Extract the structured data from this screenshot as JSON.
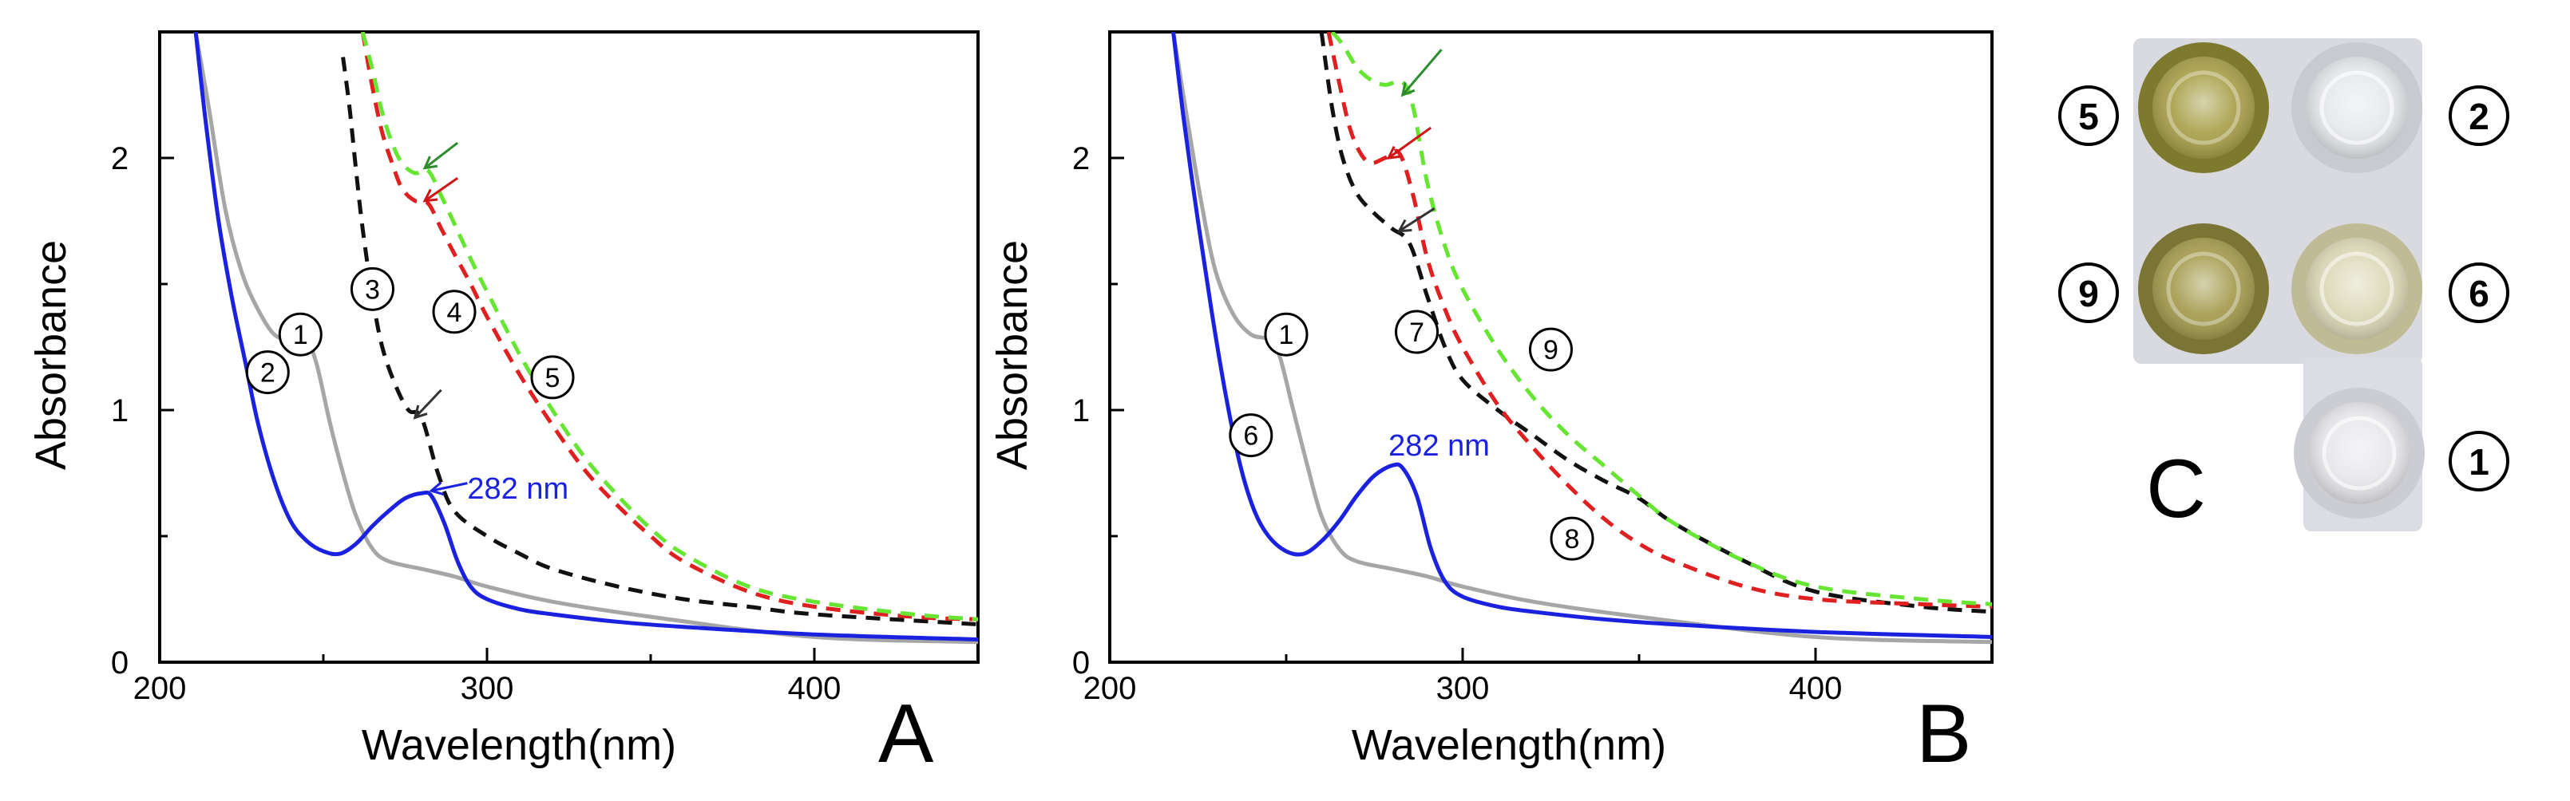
{
  "colors": {
    "curve_gray": "#a6a6a6",
    "curve_blue": "#1a22e0",
    "curve_black": "#111111",
    "curve_red": "#e02020",
    "curve_green": "#66e533",
    "arrow_green": "#2e8b2e",
    "arrow_red": "#d01515",
    "arrow_black": "#333333",
    "annot_blue": "#1a22e0"
  },
  "chart_data": [
    {
      "panel": "A",
      "type": "line",
      "xlabel": "Wavelength(nm)",
      "ylabel": "Absorbance",
      "xlim": [
        200,
        450
      ],
      "ylim": [
        0,
        2.5
      ],
      "xticks": [
        200,
        300,
        400
      ],
      "yticks": [
        0,
        1,
        2
      ],
      "series": [
        {
          "name": "1",
          "style": "solid",
          "color": "curve_gray",
          "x": [
            211,
            215,
            220,
            225,
            230,
            235,
            240,
            245,
            248,
            252,
            256,
            260,
            265,
            270,
            280,
            290,
            300,
            320,
            350,
            400,
            450
          ],
          "y": [
            2.5,
            2.2,
            1.8,
            1.55,
            1.4,
            1.3,
            1.28,
            1.27,
            1.18,
            0.95,
            0.75,
            0.58,
            0.45,
            0.4,
            0.37,
            0.34,
            0.3,
            0.24,
            0.18,
            0.1,
            0.08
          ]
        },
        {
          "name": "2",
          "style": "solid",
          "color": "curve_blue",
          "x": [
            211,
            214,
            218,
            222,
            226,
            230,
            235,
            240,
            245,
            250,
            255,
            260,
            265,
            270,
            275,
            280,
            283,
            287,
            291,
            295,
            300,
            310,
            320,
            340,
            360,
            400,
            450
          ],
          "y": [
            2.5,
            2.15,
            1.75,
            1.45,
            1.2,
            0.95,
            0.72,
            0.56,
            0.48,
            0.44,
            0.43,
            0.47,
            0.54,
            0.6,
            0.65,
            0.67,
            0.66,
            0.55,
            0.4,
            0.3,
            0.25,
            0.21,
            0.19,
            0.16,
            0.14,
            0.11,
            0.09
          ]
        },
        {
          "name": "3",
          "style": "dashed",
          "color": "curve_black",
          "x": [
            256,
            258,
            260,
            262,
            265,
            268,
            272,
            276,
            280,
            285,
            290,
            300,
            310,
            320,
            340,
            360,
            380,
            400,
            450
          ],
          "y": [
            2.4,
            2.2,
            1.95,
            1.72,
            1.45,
            1.25,
            1.1,
            1.0,
            0.97,
            0.75,
            0.6,
            0.5,
            0.43,
            0.37,
            0.3,
            0.25,
            0.22,
            0.19,
            0.15
          ]
        },
        {
          "name": "4",
          "style": "dashed",
          "color": "curve_red",
          "x": [
            262,
            265,
            268,
            271,
            274,
            278,
            282,
            286,
            290,
            295,
            300,
            310,
            320,
            330,
            340,
            350,
            360,
            380,
            400,
            430,
            450
          ],
          "y": [
            2.5,
            2.28,
            2.1,
            1.98,
            1.88,
            1.83,
            1.82,
            1.72,
            1.62,
            1.5,
            1.37,
            1.14,
            0.94,
            0.76,
            0.62,
            0.5,
            0.4,
            0.28,
            0.22,
            0.18,
            0.17
          ]
        },
        {
          "name": "5",
          "style": "dashed",
          "color": "curve_green",
          "x": [
            262,
            265,
            268,
            271,
            274,
            278,
            282,
            286,
            290,
            295,
            300,
            310,
            320,
            330,
            340,
            350,
            360,
            380,
            400,
            430,
            450
          ],
          "y": [
            2.5,
            2.35,
            2.18,
            2.06,
            1.98,
            1.94,
            1.95,
            1.85,
            1.74,
            1.6,
            1.47,
            1.22,
            1.0,
            0.81,
            0.66,
            0.53,
            0.43,
            0.3,
            0.24,
            0.19,
            0.17
          ]
        }
      ],
      "markers": [
        {
          "label": "1",
          "x": 243,
          "y": 1.3
        },
        {
          "label": "2",
          "x": 233,
          "y": 1.15
        },
        {
          "label": "3",
          "x": 265,
          "y": 1.48
        },
        {
          "label": "4",
          "x": 290,
          "y": 1.39
        },
        {
          "label": "5",
          "x": 320,
          "y": 1.13
        }
      ],
      "arrows": [
        {
          "color": "arrow_green",
          "from": [
            291,
            2.06
          ],
          "to": [
            281,
            1.96
          ]
        },
        {
          "color": "arrow_red",
          "from": [
            291,
            1.92
          ],
          "to": [
            281,
            1.83
          ]
        },
        {
          "color": "arrow_black",
          "from": [
            286,
            1.08
          ],
          "to": [
            278,
            0.97
          ]
        },
        {
          "color": "annot_blue",
          "from": [
            294,
            0.71
          ],
          "to": [
            283,
            0.68
          ]
        }
      ],
      "annotations": [
        {
          "text": "282 nm",
          "x": 294,
          "y": 0.69,
          "color": "annot_blue"
        }
      ],
      "panel_letter": "A"
    },
    {
      "panel": "B",
      "type": "line",
      "xlabel": "Wavelength(nm)",
      "ylabel": "Absorbance",
      "xlim": [
        200,
        450
      ],
      "ylim": [
        0,
        2.5
      ],
      "xticks": [
        200,
        300,
        400
      ],
      "yticks": [
        0,
        1,
        2
      ],
      "series": [
        {
          "name": "1",
          "style": "solid",
          "color": "curve_gray",
          "x": [
            218,
            222,
            226,
            230,
            235,
            240,
            245,
            248,
            252,
            256,
            260,
            265,
            270,
            280,
            290,
            300,
            320,
            350,
            400,
            450
          ],
          "y": [
            2.5,
            2.15,
            1.82,
            1.55,
            1.38,
            1.3,
            1.28,
            1.22,
            1.0,
            0.78,
            0.58,
            0.45,
            0.4,
            0.37,
            0.34,
            0.3,
            0.24,
            0.18,
            0.1,
            0.08
          ]
        },
        {
          "name": "6",
          "style": "solid",
          "color": "curve_blue",
          "x": [
            218,
            221,
            225,
            229,
            233,
            237,
            241,
            245,
            250,
            255,
            260,
            265,
            270,
            275,
            280,
            283,
            287,
            291,
            295,
            300,
            310,
            320,
            340,
            360,
            400,
            450
          ],
          "y": [
            2.5,
            2.15,
            1.75,
            1.38,
            1.05,
            0.78,
            0.6,
            0.5,
            0.44,
            0.43,
            0.48,
            0.56,
            0.66,
            0.74,
            0.78,
            0.77,
            0.66,
            0.45,
            0.32,
            0.26,
            0.22,
            0.2,
            0.17,
            0.15,
            0.12,
            0.1
          ]
        },
        {
          "name": "7",
          "style": "dashed",
          "color": "curve_black",
          "x": [
            260,
            263,
            266,
            270,
            275,
            280,
            285,
            290,
            295,
            300,
            310,
            320,
            330,
            340,
            350,
            360,
            380,
            400,
            430,
            450
          ],
          "y": [
            2.5,
            2.2,
            2.0,
            1.86,
            1.78,
            1.72,
            1.66,
            1.45,
            1.25,
            1.12,
            1.0,
            0.9,
            0.8,
            0.72,
            0.65,
            0.55,
            0.4,
            0.28,
            0.22,
            0.2
          ]
        },
        {
          "name": "8",
          "style": "dashed",
          "color": "curve_red",
          "x": [
            262,
            265,
            268,
            271,
            274,
            278,
            282,
            286,
            290,
            295,
            300,
            310,
            320,
            330,
            340,
            350,
            360,
            380,
            400,
            430,
            450
          ],
          "y": [
            2.5,
            2.3,
            2.12,
            2.02,
            1.98,
            2.0,
            2.02,
            1.85,
            1.6,
            1.4,
            1.25,
            1.02,
            0.85,
            0.7,
            0.57,
            0.47,
            0.4,
            0.3,
            0.25,
            0.23,
            0.22
          ]
        },
        {
          "name": "9",
          "style": "dashed",
          "color": "curve_green",
          "x": [
            263,
            266,
            270,
            274,
            278,
            283,
            286,
            290,
            295,
            300,
            310,
            320,
            330,
            340,
            350,
            360,
            380,
            400,
            430,
            450
          ],
          "y": [
            2.5,
            2.45,
            2.36,
            2.31,
            2.29,
            2.3,
            2.2,
            1.9,
            1.65,
            1.48,
            1.24,
            1.05,
            0.9,
            0.78,
            0.66,
            0.55,
            0.4,
            0.3,
            0.25,
            0.23
          ]
        }
      ],
      "markers": [
        {
          "label": "1",
          "x": 250,
          "y": 1.3
        },
        {
          "label": "6",
          "x": 240,
          "y": 0.9
        },
        {
          "label": "7",
          "x": 287,
          "y": 1.31
        },
        {
          "label": "8",
          "x": 331,
          "y": 0.49
        },
        {
          "label": "9",
          "x": 325,
          "y": 1.24
        }
      ],
      "arrows": [
        {
          "color": "arrow_green",
          "from": [
            294,
            2.43
          ],
          "to": [
            283,
            2.25
          ]
        },
        {
          "color": "arrow_red",
          "from": [
            291,
            2.12
          ],
          "to": [
            279,
            2.0
          ]
        },
        {
          "color": "arrow_black",
          "from": [
            292,
            1.8
          ],
          "to": [
            282,
            1.71
          ]
        }
      ],
      "annotations": [
        {
          "text": "282 nm",
          "x": 279,
          "y": 0.86,
          "color": "annot_blue"
        }
      ],
      "panel_letter": "B"
    }
  ],
  "panel_c": {
    "letter": "C",
    "wells": [
      {
        "label": "5",
        "fill": "#a8a04a",
        "rim": "#7d7a2e"
      },
      {
        "label": "2",
        "fill": "#e6e8ec",
        "rim": "#c7cad0"
      },
      {
        "label": "9",
        "fill": "#a59c4f",
        "rim": "#7b7535"
      },
      {
        "label": "6",
        "fill": "#dcd9b8",
        "rim": "#bfbb95"
      },
      {
        "label": "1",
        "fill": "#e8e8ec",
        "rim": "#cccdd3"
      }
    ]
  }
}
